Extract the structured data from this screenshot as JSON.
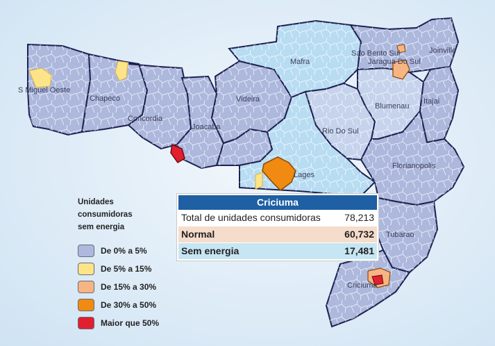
{
  "legend": {
    "title_lines": [
      "Unidades",
      "consumidoras",
      "sem energia"
    ],
    "items": [
      {
        "label": "De 0% a 5%",
        "color": "#adb8dd"
      },
      {
        "label": "De 5% a 15%",
        "color": "#fde488"
      },
      {
        "label": "De 15% a 30%",
        "color": "#f6b583"
      },
      {
        "label": "De 30% a 50%",
        "color": "#f08a10"
      },
      {
        "label": "Maior que 50%",
        "color": "#e02030"
      }
    ]
  },
  "info_box": {
    "region": "Criciuma",
    "total_label": "Total de unidades consumidoras",
    "total_value": "78,213",
    "normal_label": "Normal",
    "normal_value": "60,732",
    "sem_energia_label": "Sem energia",
    "sem_energia_value": "17,481"
  },
  "cities": {
    "sao_miguel_oeste": "S Miguel Oeste",
    "chapeco": "Chapeco",
    "concordia": "Concordia",
    "joacaba": "Joacaba",
    "videira": "Videira",
    "mafra": "Mafra",
    "sao_bento_sul": "Sao Bento Sul",
    "jaragua_do_sul": "Jaragua Do Sul",
    "joinville": "Joinville",
    "blumenau": "Blumenau",
    "itajai": "Itajai",
    "rio_do_sul": "Rio Do Sul",
    "florianopolis": "Florianopolis",
    "lages": "Lages",
    "tubarao": "Tubarao",
    "criciuma": "Criciuma"
  },
  "colors": {
    "low": "#adb8dd",
    "low_light": "#c6d3ec",
    "highland": "#b8dcf2",
    "yellow": "#fde488",
    "salmon": "#f6b583",
    "orange": "#f08a10",
    "red": "#e02030",
    "header_blue": "#1f5fa3"
  }
}
